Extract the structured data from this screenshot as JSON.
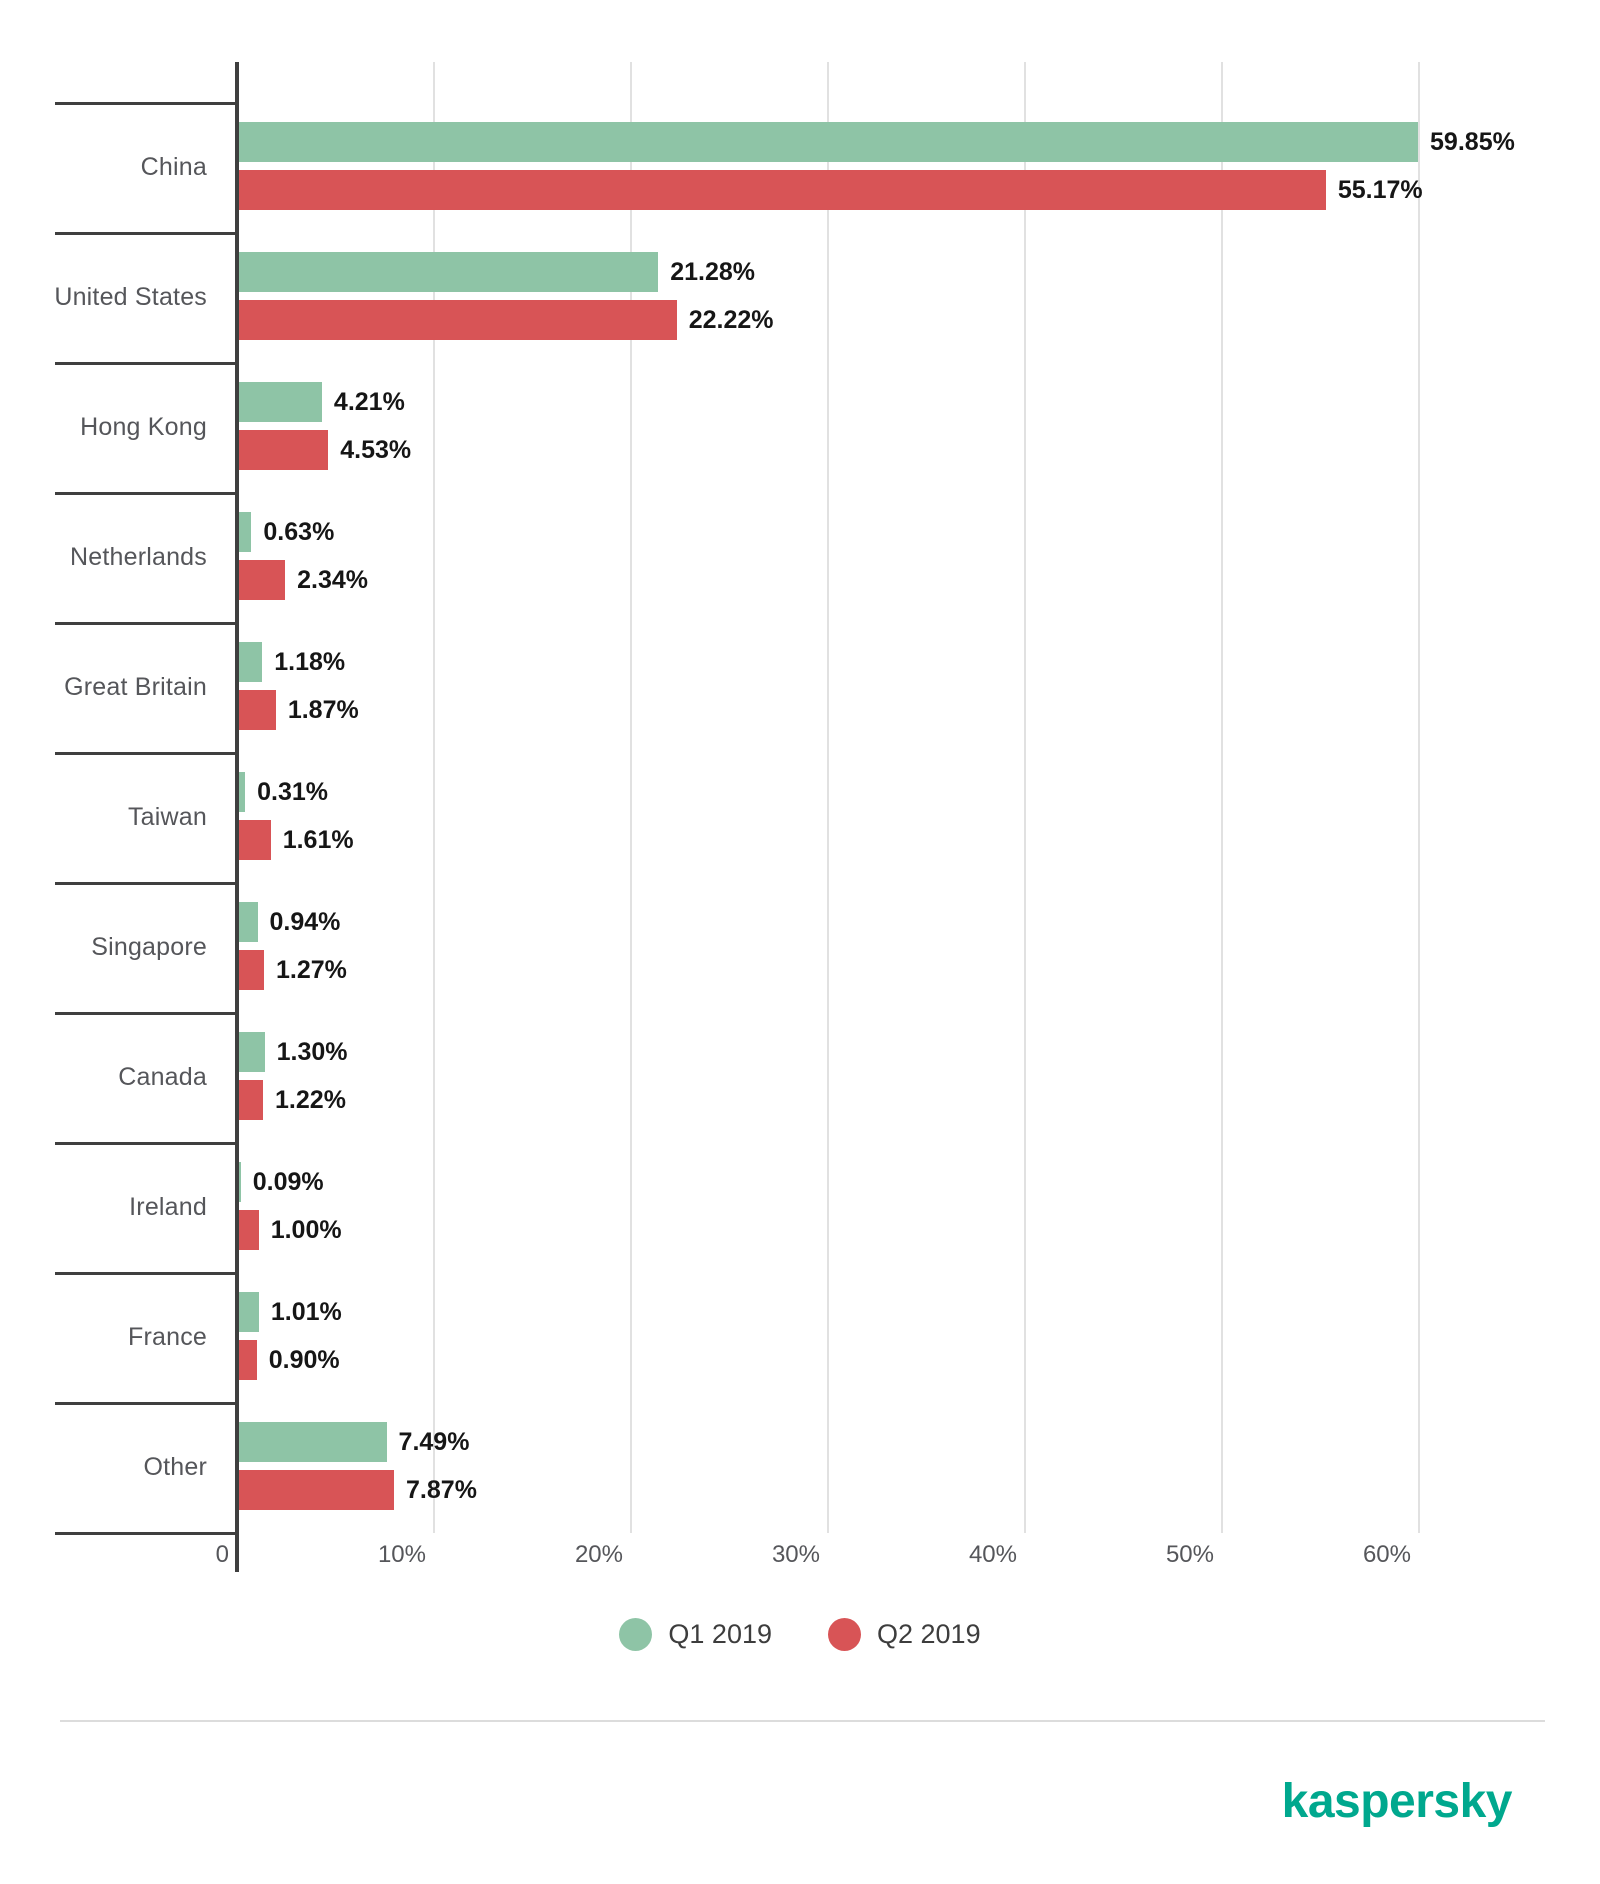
{
  "chart_data": {
    "type": "bar",
    "orientation": "horizontal",
    "title": "",
    "xlabel": "",
    "ylabel": "",
    "categories": [
      "China",
      "United States",
      "Hong Kong",
      "Netherlands",
      "Great Britain",
      "Taiwan",
      "Singapore",
      "Canada",
      "Ireland",
      "France",
      "Other"
    ],
    "series": [
      {
        "name": "Q1 2019",
        "color": "#8ec4a6",
        "values": [
          59.85,
          21.28,
          4.21,
          0.63,
          1.18,
          0.31,
          0.94,
          1.3,
          0.09,
          1.01,
          7.49
        ],
        "labels": [
          "59.85%",
          "21.28%",
          "4.21%",
          "0.63%",
          "1.18%",
          "0.31%",
          "0.94%",
          "1.30%",
          "0.09%",
          "1.01%",
          "7.49%"
        ]
      },
      {
        "name": "Q2 2019",
        "color": "#d85456",
        "values": [
          55.17,
          22.22,
          4.53,
          2.34,
          1.87,
          1.61,
          1.27,
          1.22,
          1.0,
          0.9,
          7.87
        ],
        "labels": [
          "55.17%",
          "22.22%",
          "4.53%",
          "2.34%",
          "1.87%",
          "1.61%",
          "1.27%",
          "1.22%",
          "1.00%",
          "0.90%",
          "7.87%"
        ]
      }
    ],
    "x_ticks": [
      "0",
      "10%",
      "20%",
      "30%",
      "40%",
      "50%",
      "60%"
    ],
    "x_tick_values": [
      0,
      10,
      20,
      30,
      40,
      50,
      60
    ],
    "xlim": [
      0,
      65.6
    ],
    "grid": "vertical-only",
    "legend_position": "bottom-center"
  },
  "legend": {
    "items": [
      {
        "label": "Q1 2019",
        "color": "#8ec4a6"
      },
      {
        "label": "Q2 2019",
        "color": "#d85456"
      }
    ]
  },
  "branding": {
    "logo_text": "kaspersky",
    "logo_color": "#00a88e"
  }
}
